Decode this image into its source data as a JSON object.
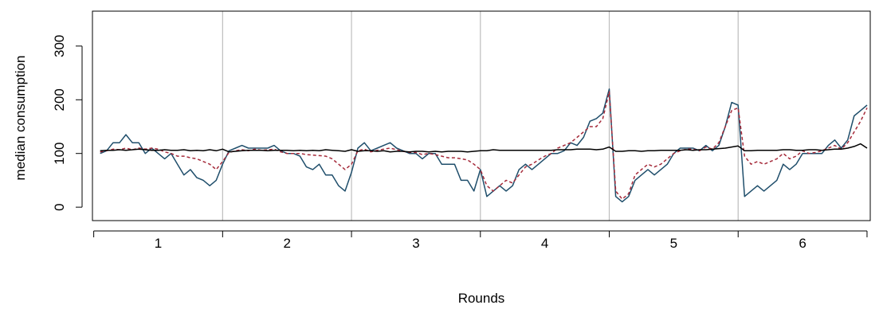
{
  "chart_data": {
    "type": "line",
    "title": "",
    "xlabel": "Rounds",
    "ylabel": "median consumption",
    "ylim": [
      -25,
      365
    ],
    "xlim": [
      -0.2,
      120.5
    ],
    "y_ticks": [
      "0",
      "100",
      "200",
      "300"
    ],
    "y_tick_values": [
      0,
      100,
      200,
      300
    ],
    "x_tick_labels": [
      "1",
      "2",
      "3",
      "4",
      "5",
      "6"
    ],
    "x_tick_centers": [
      10,
      30,
      50,
      70,
      90,
      110
    ],
    "x_boundaries": [
      0,
      20,
      40,
      60,
      80,
      100,
      120
    ],
    "grid": "vertical lines at round boundaries",
    "series": [
      {
        "color": "#1f4e6b",
        "style": "solid",
        "x": [
          1,
          2,
          3,
          4,
          5,
          6,
          7,
          8,
          9,
          10,
          11,
          12,
          13,
          14,
          15,
          16,
          17,
          18,
          19,
          20,
          21,
          22,
          23,
          24,
          25,
          26,
          27,
          28,
          29,
          30,
          31,
          32,
          33,
          34,
          35,
          36,
          37,
          38,
          39,
          40,
          41,
          42,
          43,
          44,
          45,
          46,
          47,
          48,
          49,
          50,
          51,
          52,
          53,
          54,
          55,
          56,
          57,
          58,
          59,
          60,
          61,
          62,
          63,
          64,
          65,
          66,
          67,
          68,
          69,
          70,
          71,
          72,
          73,
          74,
          75,
          76,
          77,
          78,
          79,
          80,
          81,
          82,
          83,
          84,
          85,
          86,
          87,
          88,
          89,
          90,
          91,
          92,
          93,
          94,
          95,
          96,
          97,
          98,
          99,
          100,
          101,
          102,
          103,
          104,
          105,
          106,
          107,
          108,
          109,
          110,
          111,
          112,
          113,
          114,
          115,
          116,
          117,
          118,
          119,
          120
        ],
        "values": [
          100,
          105,
          120,
          120,
          135,
          120,
          120,
          100,
          110,
          100,
          90,
          100,
          80,
          60,
          70,
          55,
          50,
          40,
          50,
          80,
          105,
          110,
          115,
          110,
          110,
          110,
          110,
          115,
          105,
          100,
          100,
          95,
          75,
          70,
          80,
          60,
          60,
          40,
          30,
          65,
          110,
          120,
          105,
          110,
          115,
          120,
          110,
          105,
          100,
          100,
          90,
          100,
          100,
          80,
          80,
          80,
          50,
          50,
          30,
          70,
          20,
          30,
          40,
          30,
          40,
          70,
          80,
          70,
          80,
          90,
          100,
          100,
          105,
          120,
          115,
          130,
          160,
          165,
          175,
          220,
          20,
          10,
          20,
          50,
          60,
          70,
          60,
          70,
          80,
          100,
          110,
          110,
          110,
          105,
          115,
          105,
          115,
          150,
          195,
          190,
          20,
          30,
          40,
          30,
          40,
          50,
          80,
          70,
          80,
          100,
          100,
          100,
          100,
          115,
          125,
          110,
          125,
          170,
          180,
          190
        ]
      },
      {
        "color": "#a52a3a",
        "style": "dashed",
        "x": [
          1,
          2,
          3,
          4,
          5,
          6,
          7,
          8,
          9,
          10,
          11,
          12,
          13,
          14,
          15,
          16,
          17,
          18,
          19,
          20,
          21,
          22,
          23,
          24,
          25,
          26,
          27,
          28,
          29,
          30,
          31,
          32,
          33,
          34,
          35,
          36,
          37,
          38,
          39,
          40,
          41,
          42,
          43,
          44,
          45,
          46,
          47,
          48,
          49,
          50,
          51,
          52,
          53,
          54,
          55,
          56,
          57,
          58,
          59,
          60,
          61,
          62,
          63,
          64,
          65,
          66,
          67,
          68,
          69,
          70,
          71,
          72,
          73,
          74,
          75,
          76,
          77,
          78,
          79,
          80,
          81,
          82,
          83,
          84,
          85,
          86,
          87,
          88,
          89,
          90,
          91,
          92,
          93,
          94,
          95,
          96,
          97,
          98,
          99,
          100,
          101,
          102,
          103,
          104,
          105,
          106,
          107,
          108,
          109,
          110,
          111,
          112,
          113,
          114,
          115,
          116,
          117,
          118,
          119,
          120
        ],
        "values": [
          103,
          105,
          108,
          107,
          110,
          107,
          110,
          108,
          110,
          108,
          103,
          100,
          95,
          95,
          92,
          90,
          85,
          80,
          70,
          85,
          102,
          105,
          107,
          105,
          108,
          106,
          107,
          108,
          103,
          100,
          100,
          100,
          98,
          97,
          96,
          95,
          90,
          80,
          70,
          80,
          105,
          108,
          103,
          106,
          108,
          110,
          107,
          104,
          102,
          102,
          98,
          100,
          98,
          95,
          92,
          92,
          90,
          88,
          80,
          70,
          40,
          30,
          40,
          50,
          45,
          60,
          75,
          80,
          88,
          95,
          100,
          110,
          115,
          120,
          130,
          140,
          150,
          150,
          165,
          215,
          30,
          15,
          25,
          60,
          70,
          80,
          75,
          80,
          90,
          100,
          105,
          108,
          108,
          105,
          112,
          108,
          120,
          150,
          180,
          185,
          95,
          80,
          85,
          80,
          85,
          90,
          100,
          90,
          95,
          105,
          100,
          102,
          105,
          110,
          115,
          108,
          120,
          140,
          160,
          185
        ]
      },
      {
        "color": "#000000",
        "style": "solid",
        "x": [
          1,
          2,
          3,
          4,
          5,
          6,
          7,
          8,
          9,
          10,
          11,
          12,
          13,
          14,
          15,
          16,
          17,
          18,
          19,
          20,
          21,
          22,
          23,
          24,
          25,
          26,
          27,
          28,
          29,
          30,
          31,
          32,
          33,
          34,
          35,
          36,
          37,
          38,
          39,
          40,
          41,
          42,
          43,
          44,
          45,
          46,
          47,
          48,
          49,
          50,
          51,
          52,
          53,
          54,
          55,
          56,
          57,
          58,
          59,
          60,
          61,
          62,
          63,
          64,
          65,
          66,
          67,
          68,
          69,
          70,
          71,
          72,
          73,
          74,
          75,
          76,
          77,
          78,
          79,
          80,
          81,
          82,
          83,
          84,
          85,
          86,
          87,
          88,
          89,
          90,
          91,
          92,
          93,
          94,
          95,
          96,
          97,
          98,
          99,
          100,
          101,
          102,
          103,
          104,
          105,
          106,
          107,
          108,
          109,
          110,
          111,
          112,
          113,
          114,
          115,
          116,
          117,
          118,
          119,
          120
        ],
        "values": [
          105,
          106,
          106,
          107,
          106,
          107,
          108,
          107,
          106,
          106,
          107,
          106,
          106,
          107,
          105,
          106,
          105,
          107,
          105,
          108,
          103,
          104,
          105,
          106,
          106,
          106,
          105,
          106,
          106,
          106,
          105,
          106,
          105,
          106,
          105,
          107,
          106,
          105,
          104,
          107,
          104,
          105,
          105,
          104,
          105,
          103,
          104,
          104,
          103,
          104,
          104,
          103,
          104,
          103,
          104,
          104,
          104,
          103,
          104,
          105,
          105,
          107,
          106,
          106,
          106,
          106,
          106,
          106,
          106,
          106,
          106,
          107,
          107,
          107,
          108,
          108,
          108,
          107,
          108,
          112,
          104,
          104,
          105,
          105,
          104,
          105,
          105,
          106,
          106,
          106,
          106,
          107,
          106,
          107,
          107,
          108,
          109,
          110,
          112,
          114,
          105,
          105,
          106,
          106,
          106,
          106,
          107,
          107,
          106,
          106,
          107,
          107,
          106,
          107,
          108,
          108,
          110,
          113,
          118,
          110
        ]
      }
    ]
  }
}
